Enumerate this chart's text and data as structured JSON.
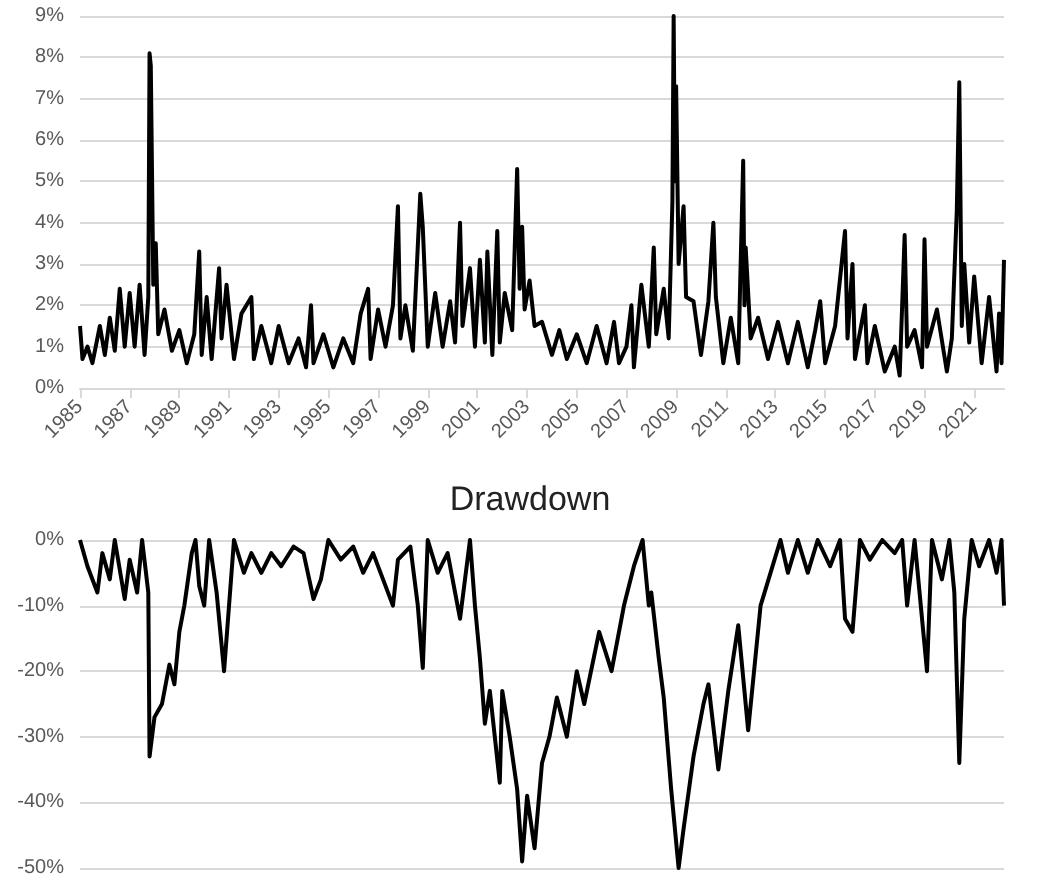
{
  "chart_data": [
    {
      "type": "line",
      "color": "#000000",
      "grid": "y",
      "xlim": [
        1985,
        2022.2
      ],
      "xticks": [
        1985,
        1987,
        1989,
        1991,
        1993,
        1995,
        1997,
        1999,
        2001,
        2003,
        2005,
        2007,
        2009,
        2011,
        2013,
        2015,
        2017,
        2019,
        2021
      ],
      "ylim": [
        0,
        9
      ],
      "yticks": [
        {
          "value": 0,
          "label": "0%"
        },
        {
          "value": 1,
          "label": "1%"
        },
        {
          "value": 2,
          "label": "2%"
        },
        {
          "value": 3,
          "label": "3%"
        },
        {
          "value": 4,
          "label": "4%"
        },
        {
          "value": 5,
          "label": "5%"
        },
        {
          "value": 6,
          "label": "6%"
        },
        {
          "value": 7,
          "label": "7%"
        },
        {
          "value": 8,
          "label": "8%"
        },
        {
          "value": 9,
          "label": "9%"
        }
      ],
      "x": [
        1985,
        1985.1,
        1985.3,
        1985.5,
        1985.8,
        1986.0,
        1986.2,
        1986.4,
        1986.6,
        1986.8,
        1987.0,
        1987.2,
        1987.4,
        1987.6,
        1987.75,
        1987.8,
        1987.85,
        1987.95,
        1988.05,
        1988.15,
        1988.4,
        1988.7,
        1989.0,
        1989.3,
        1989.6,
        1989.8,
        1989.9,
        1990.1,
        1990.3,
        1990.6,
        1990.7,
        1990.9,
        1991.2,
        1991.5,
        1991.9,
        1992.0,
        1992.3,
        1992.7,
        1993.0,
        1993.4,
        1993.8,
        1994.1,
        1994.3,
        1994.4,
        1994.8,
        1995.2,
        1995.6,
        1996.0,
        1996.3,
        1996.6,
        1996.7,
        1997.0,
        1997.3,
        1997.6,
        1997.8,
        1997.9,
        1998.1,
        1998.4,
        1998.7,
        1998.8,
        1999.0,
        1999.3,
        1999.6,
        1999.9,
        2000.1,
        2000.3,
        2000.4,
        2000.7,
        2000.9,
        2001.1,
        2001.3,
        2001.4,
        2001.6,
        2001.8,
        2001.9,
        2002.1,
        2002.4,
        2002.6,
        2002.7,
        2002.8,
        2002.9,
        2003.1,
        2003.3,
        2003.6,
        2004.0,
        2004.3,
        2004.6,
        2005.0,
        2005.4,
        2005.8,
        2006.2,
        2006.5,
        2006.7,
        2007.0,
        2007.2,
        2007.3,
        2007.6,
        2007.9,
        2008.1,
        2008.2,
        2008.5,
        2008.7,
        2008.85,
        2008.9,
        2008.95,
        2009.0,
        2009.1,
        2009.3,
        2009.4,
        2009.7,
        2010.0,
        2010.3,
        2010.5,
        2010.6,
        2010.9,
        2011.2,
        2011.5,
        2011.7,
        2011.75,
        2011.8,
        2012.0,
        2012.3,
        2012.7,
        2013.1,
        2013.5,
        2013.9,
        2014.3,
        2014.6,
        2014.8,
        2015.0,
        2015.4,
        2015.8,
        2015.9,
        2016.1,
        2016.2,
        2016.6,
        2016.7,
        2017.0,
        2017.4,
        2017.8,
        2018.0,
        2018.2,
        2018.3,
        2018.6,
        2018.9,
        2019.0,
        2019.1,
        2019.5,
        2019.9,
        2020.1,
        2020.3,
        2020.4,
        2020.5,
        2020.6,
        2020.8,
        2021.0,
        2021.3,
        2021.6,
        2021.9,
        2022.0,
        2022.1,
        2022.2
      ],
      "values": [
        1.5,
        0.7,
        1.0,
        0.6,
        1.5,
        0.8,
        1.7,
        0.9,
        2.4,
        1.0,
        2.3,
        1.0,
        2.5,
        0.8,
        2.2,
        8.1,
        7.8,
        2.5,
        3.5,
        1.3,
        1.9,
        0.9,
        1.4,
        0.6,
        1.3,
        3.3,
        0.8,
        2.2,
        0.7,
        2.9,
        1.2,
        2.5,
        0.7,
        1.8,
        2.2,
        0.7,
        1.5,
        0.6,
        1.5,
        0.6,
        1.2,
        0.5,
        2.0,
        0.6,
        1.3,
        0.5,
        1.2,
        0.6,
        1.8,
        2.4,
        0.7,
        1.9,
        1.0,
        2.0,
        4.4,
        1.2,
        2.0,
        0.9,
        4.7,
        3.9,
        1.0,
        2.3,
        1.0,
        2.1,
        1.1,
        4.0,
        1.5,
        2.9,
        1.0,
        3.1,
        1.1,
        3.3,
        0.8,
        3.8,
        1.1,
        2.3,
        1.4,
        5.3,
        2.4,
        3.9,
        1.9,
        2.6,
        1.5,
        1.6,
        0.8,
        1.4,
        0.7,
        1.3,
        0.6,
        1.5,
        0.6,
        1.6,
        0.6,
        1.0,
        2.0,
        0.5,
        2.5,
        1.0,
        3.4,
        1.3,
        2.4,
        1.2,
        4.5,
        9.0,
        5.0,
        7.3,
        3.0,
        4.4,
        2.2,
        2.1,
        0.8,
        2.1,
        4.0,
        2.2,
        0.6,
        1.7,
        0.6,
        5.5,
        2.0,
        3.4,
        1.2,
        1.7,
        0.7,
        1.6,
        0.6,
        1.6,
        0.5,
        1.4,
        2.1,
        0.6,
        1.5,
        3.8,
        1.2,
        3.0,
        0.7,
        2.0,
        0.6,
        1.5,
        0.4,
        1.0,
        0.3,
        3.7,
        1.0,
        1.4,
        0.5,
        3.6,
        1.0,
        1.9,
        0.4,
        1.2,
        4.3,
        7.4,
        1.5,
        3.0,
        1.1,
        2.7,
        0.6,
        2.2,
        0.4,
        1.8,
        0.6,
        3.1
      ]
    },
    {
      "type": "line",
      "title": "Drawdown",
      "color": "#000000",
      "grid": "y",
      "tick_labels": "y",
      "xlim": [
        1985,
        2022.2
      ],
      "ylim": [
        -50,
        0
      ],
      "yticks": [
        {
          "value": -50,
          "label": "-50%"
        },
        {
          "value": -40,
          "label": "-40%"
        },
        {
          "value": -30,
          "label": "-30%"
        },
        {
          "value": -20,
          "label": "-20%"
        },
        {
          "value": -10,
          "label": "-10%"
        },
        {
          "value": 0,
          "label": "0%"
        }
      ],
      "x": [
        1985,
        1985.3,
        1985.7,
        1985.9,
        1986.2,
        1986.4,
        1986.8,
        1987.0,
        1987.3,
        1987.5,
        1987.75,
        1987.8,
        1988.0,
        1988.3,
        1988.6,
        1988.8,
        1989.0,
        1989.2,
        1989.5,
        1989.65,
        1989.8,
        1990.0,
        1990.2,
        1990.5,
        1990.8,
        1990.9,
        1991.2,
        1991.6,
        1991.9,
        1992.3,
        1992.7,
        1993.1,
        1993.6,
        1994.0,
        1994.4,
        1994.7,
        1995.0,
        1995.5,
        1996.0,
        1996.4,
        1996.8,
        1997.2,
        1997.6,
        1997.8,
        1998.3,
        1998.6,
        1998.8,
        1999.0,
        1999.4,
        1999.8,
        2000.3,
        2000.7,
        2000.9,
        2001.1,
        2001.3,
        2001.5,
        2001.9,
        2002.0,
        2002.3,
        2002.6,
        2002.8,
        2003.0,
        2003.3,
        2003.6,
        2003.9,
        2004.2,
        2004.6,
        2005.0,
        2005.3,
        2005.9,
        2006.4,
        2006.9,
        2007.3,
        2007.65,
        2007.9,
        2008.0,
        2008.3,
        2008.5,
        2008.8,
        2009.1,
        2009.3,
        2009.7,
        2010.1,
        2010.3,
        2010.7,
        2011.1,
        2011.5,
        2011.9,
        2012.4,
        2012.8,
        2013.2,
        2013.5,
        2013.9,
        2014.3,
        2014.7,
        2015.2,
        2015.6,
        2015.8,
        2016.1,
        2016.4,
        2016.8,
        2017.3,
        2017.8,
        2018.1,
        2018.3,
        2018.6,
        2018.8,
        2019.1,
        2019.3,
        2019.7,
        2020.0,
        2020.2,
        2020.4,
        2020.6,
        2020.9,
        2021.2,
        2021.6,
        2021.9,
        2022.1,
        2022.2
      ],
      "values": [
        0,
        -4,
        -8,
        -2,
        -6,
        0,
        -9,
        -3,
        -8,
        0,
        -8,
        -33,
        -27,
        -25,
        -19,
        -22,
        -14,
        -10,
        -2,
        0,
        -7,
        -10,
        0,
        -8,
        -20,
        -15,
        0,
        -5,
        -2,
        -5,
        -2,
        -4,
        -1,
        -2,
        -9,
        -6,
        0,
        -3,
        -1,
        -5,
        -2,
        -6,
        -10,
        -3,
        -1,
        -10,
        -19.5,
        0,
        -5,
        -2,
        -12,
        0,
        -10,
        -18,
        -28,
        -23,
        -37,
        -23,
        -30,
        -38,
        -49,
        -39,
        -47,
        -34,
        -30,
        -24,
        -30,
        -20,
        -25,
        -14,
        -20,
        -10,
        -4,
        0,
        -10,
        -8,
        -18,
        -24,
        -38,
        -50,
        -44,
        -33,
        -25,
        -22,
        -35,
        -23,
        -13,
        -29,
        -10,
        -5,
        0,
        -5,
        0,
        -5,
        0,
        -4,
        0,
        -12,
        -14,
        0,
        -3,
        0,
        -2,
        0,
        -10,
        0,
        -8,
        -20,
        0,
        -6,
        0,
        -8,
        -34,
        -12,
        0,
        -4,
        0,
        -5,
        0,
        -10
      ]
    }
  ]
}
